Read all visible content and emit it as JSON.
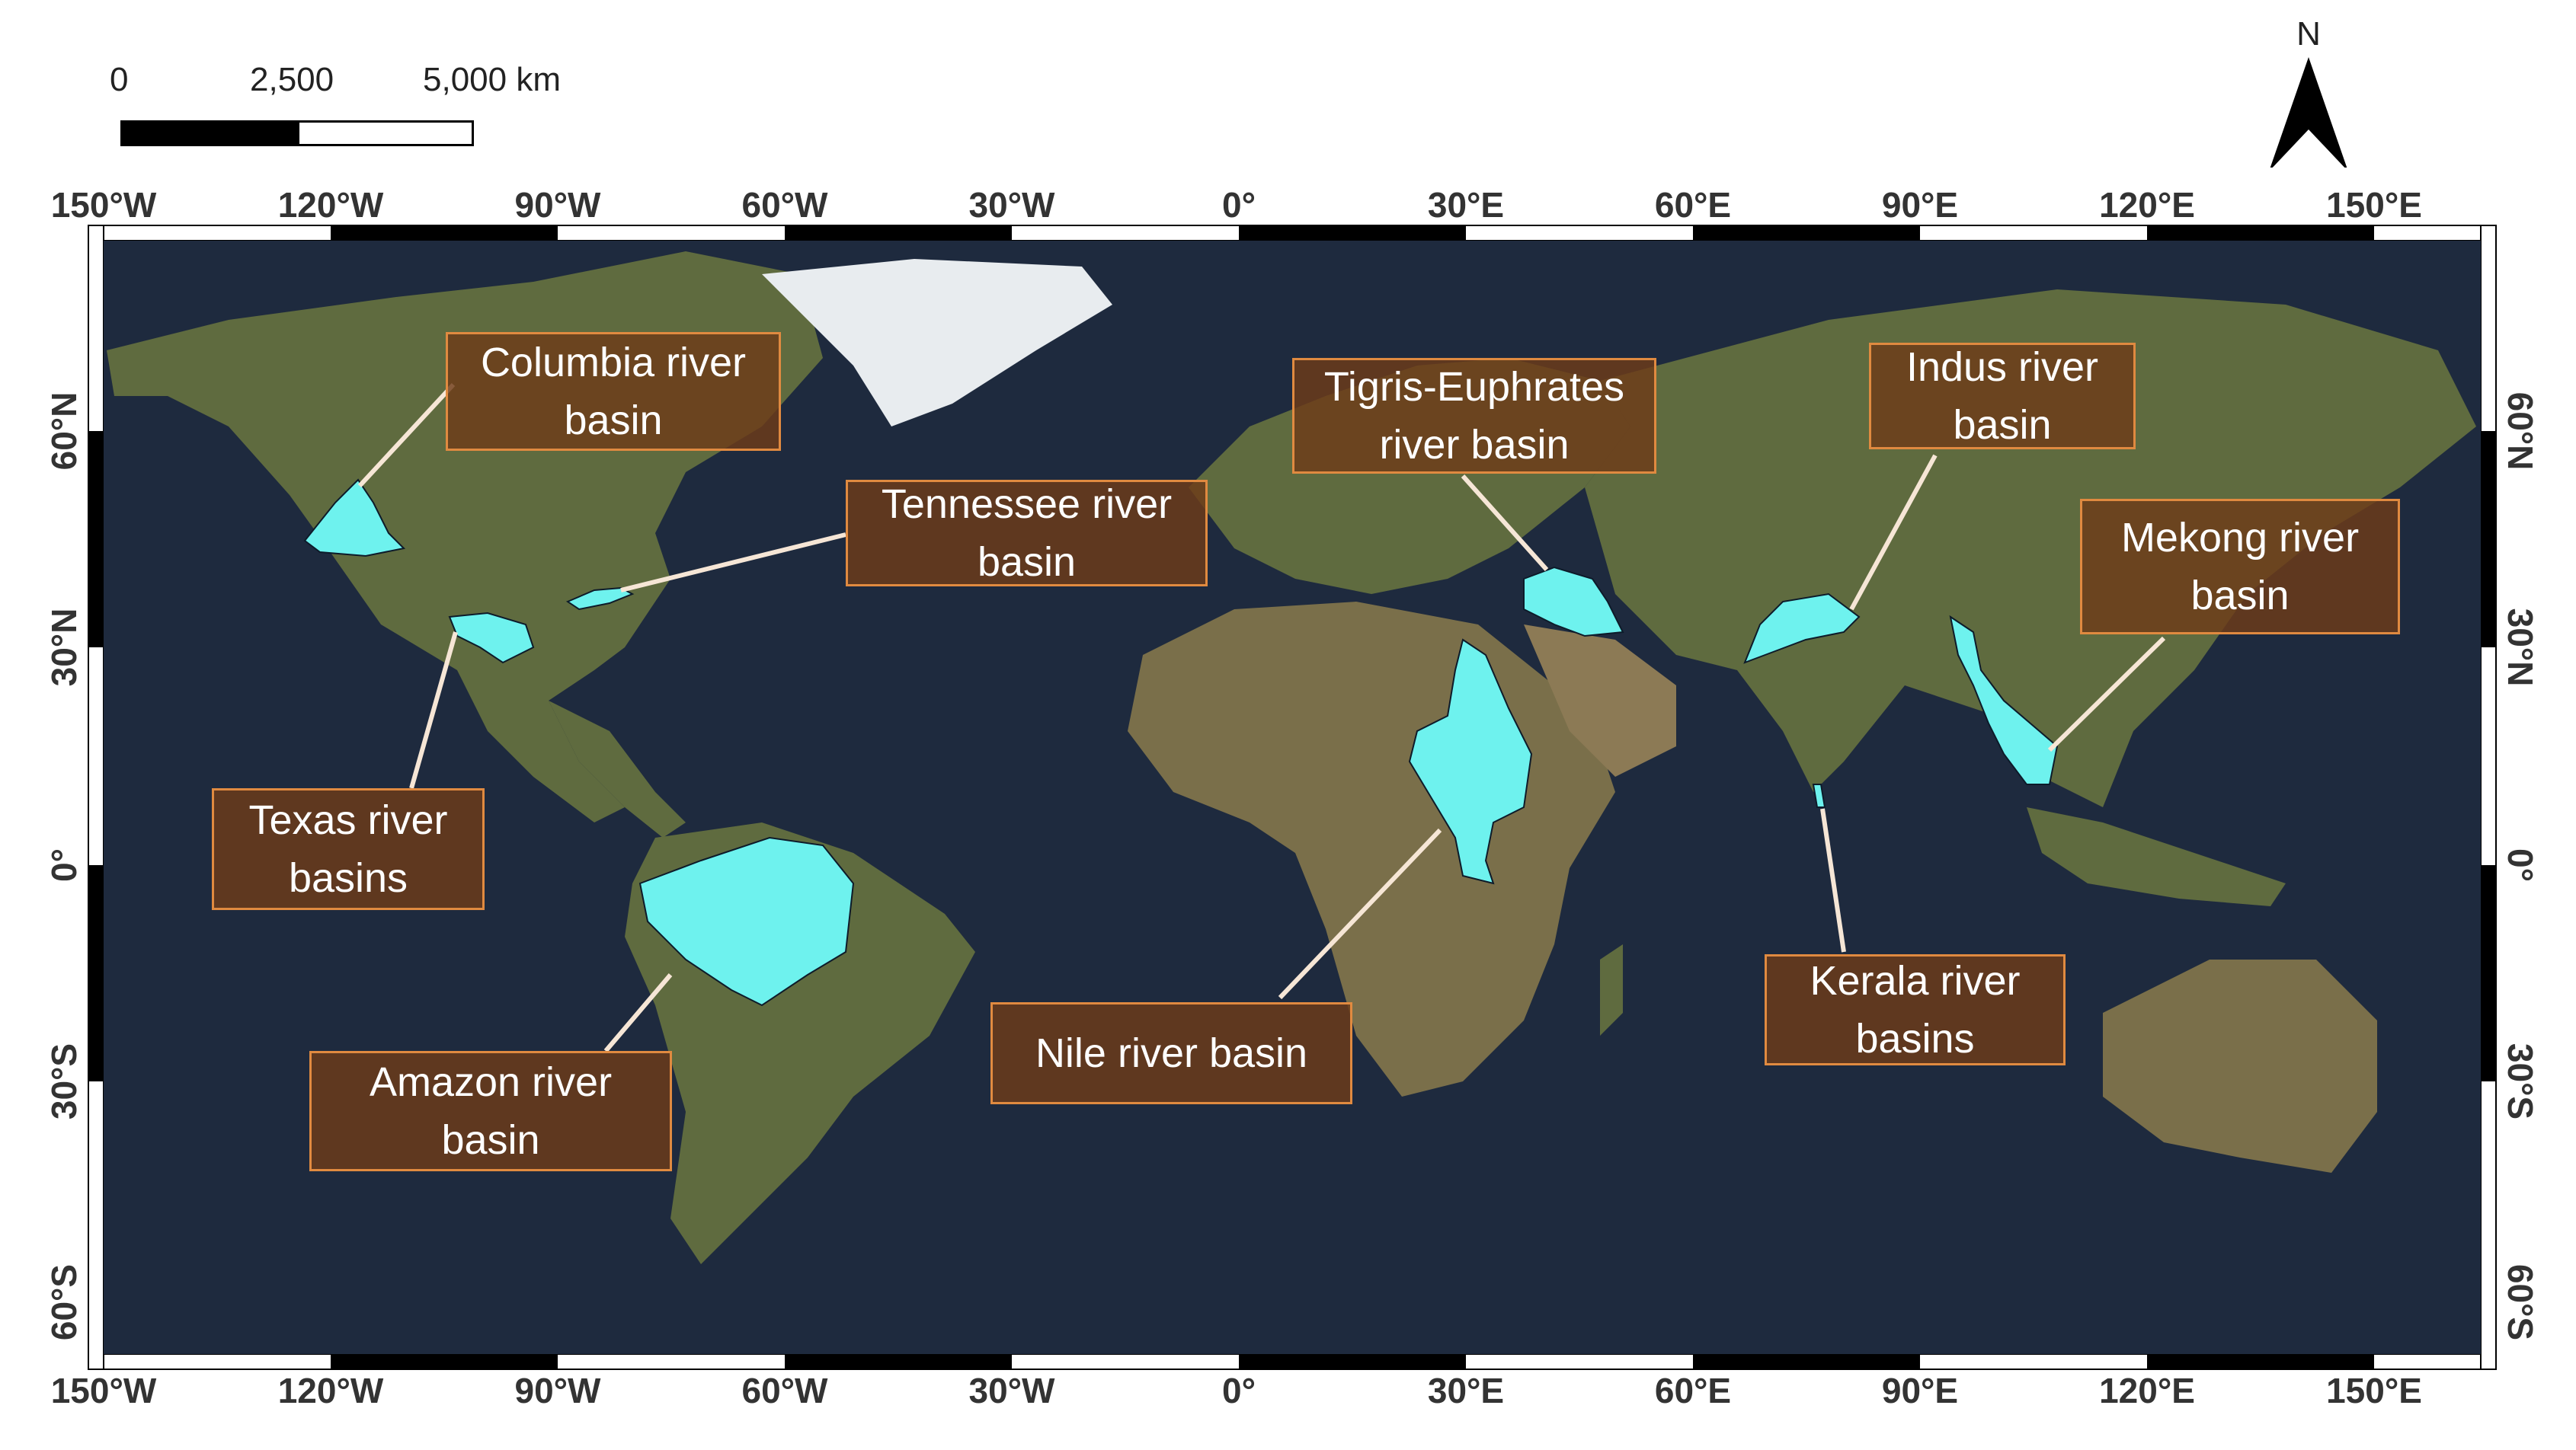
{
  "scale_bar": {
    "ticks": [
      "0",
      "2,500",
      "5,000 km"
    ]
  },
  "north_arrow": {
    "letter": "N",
    "icon": "north-arrow-icon"
  },
  "longitude_labels": [
    "150°W",
    "120°W",
    "90°W",
    "60°W",
    "30°W",
    "0°",
    "30°E",
    "60°E",
    "90°E",
    "120°E",
    "150°E"
  ],
  "latitude_labels": [
    "60°N",
    "30°N",
    "0°",
    "30°S",
    "60°S"
  ],
  "colors": {
    "ocean": "#1e2a3e",
    "land": "#5f6b3f",
    "desert": "#8c7a55",
    "ice": "#e8ecef",
    "basin": "#6ef2ee",
    "label_bg": "#6e3c19",
    "label_border": "#e08a40"
  },
  "basins": [
    {
      "id": "columbia",
      "label": "Columbia river\nbasin"
    },
    {
      "id": "tennessee",
      "label": "Tennessee  river\nbasin"
    },
    {
      "id": "texas",
      "label": "Texas river\nbasins"
    },
    {
      "id": "amazon",
      "label": "Amazon river\nbasin"
    },
    {
      "id": "nile",
      "label": "Nile river basin"
    },
    {
      "id": "tigris",
      "label": "Tigris-Euphrates\nriver basin"
    },
    {
      "id": "indus",
      "label": "Indus river\nbasin"
    },
    {
      "id": "mekong",
      "label": "Mekong river\nbasin"
    },
    {
      "id": "kerala",
      "label": "Kerala river\nbasins"
    }
  ]
}
